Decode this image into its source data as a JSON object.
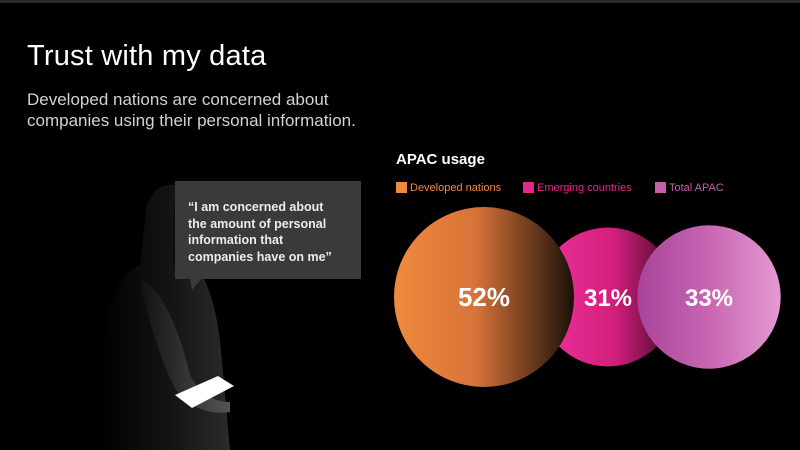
{
  "page": {
    "title": "Trust with my data",
    "subtitle": "Developed nations are concerned about companies using their personal information."
  },
  "quote": {
    "text": "“I am concerned about\nthe amount of personal\ninformation that\ncompanies have on me”"
  },
  "colors": {
    "background": "#000000",
    "developed": "#f08a3c",
    "emerging": "#e8268a",
    "total": "#c35fae",
    "bubble_box": "#3a3a3a"
  },
  "chart_data": {
    "type": "bubble",
    "title": "APAC usage",
    "legend_position": "top-left",
    "categories": [
      "Developed nations",
      "Emerging countries",
      "Total APAC"
    ],
    "values": [
      52,
      31,
      33
    ],
    "value_labels": [
      "52%",
      "31%",
      "33%"
    ],
    "unit": "%",
    "series_colors": [
      "#f08a3c",
      "#e8268a",
      "#c35fae"
    ]
  }
}
